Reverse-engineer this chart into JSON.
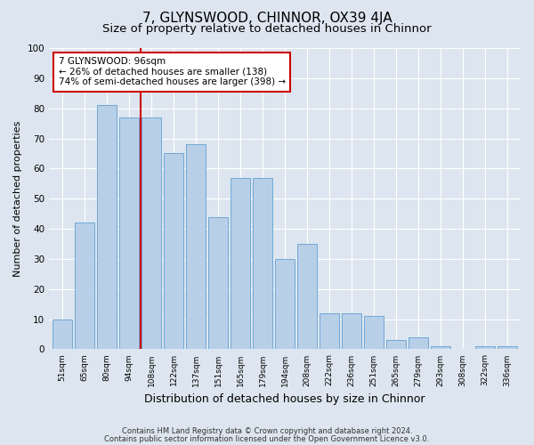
{
  "title": "7, GLYNSWOOD, CHINNOR, OX39 4JA",
  "subtitle": "Size of property relative to detached houses in Chinnor",
  "xlabel": "Distribution of detached houses by size in Chinnor",
  "ylabel": "Number of detached properties",
  "categories": [
    "51sqm",
    "65sqm",
    "80sqm",
    "94sqm",
    "108sqm",
    "122sqm",
    "137sqm",
    "151sqm",
    "165sqm",
    "179sqm",
    "194sqm",
    "208sqm",
    "222sqm",
    "236sqm",
    "251sqm",
    "265sqm",
    "279sqm",
    "293sqm",
    "308sqm",
    "322sqm",
    "336sqm"
  ],
  "values": [
    10,
    42,
    81,
    77,
    77,
    65,
    68,
    44,
    57,
    57,
    30,
    35,
    12,
    12,
    11,
    3,
    4,
    1,
    0,
    1,
    1
  ],
  "bar_color": "#b8cfe8",
  "bar_edge_color": "#6fa8d4",
  "background_color": "#dde6f0",
  "vline_x": 3.5,
  "vline_color": "#cc0000",
  "annotation_text": "7 GLYNSWOOD: 96sqm\n← 26% of detached houses are smaller (138)\n74% of semi-detached houses are larger (398) →",
  "annotation_box_color": "white",
  "annotation_box_edge": "#cc0000",
  "footer1": "Contains HM Land Registry data © Crown copyright and database right 2024.",
  "footer2": "Contains public sector information licensed under the Open Government Licence v3.0.",
  "ylim": [
    0,
    100
  ],
  "title_fontsize": 11,
  "subtitle_fontsize": 9.5,
  "xlabel_fontsize": 9,
  "ylabel_fontsize": 8
}
